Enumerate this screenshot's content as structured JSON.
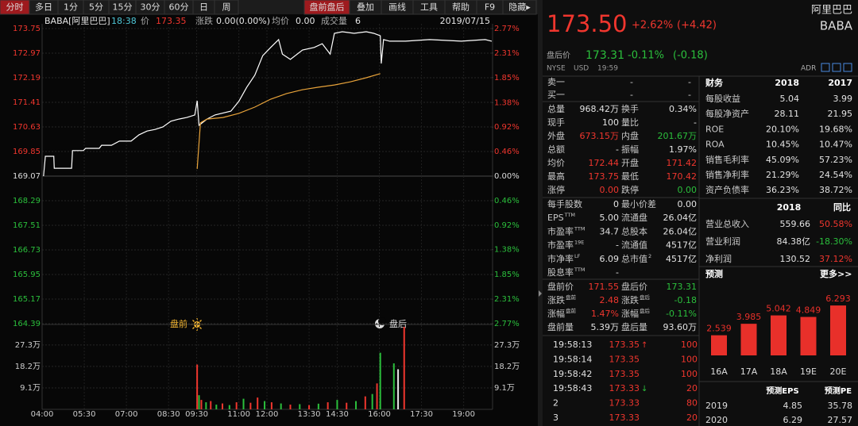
{
  "toolbar": {
    "left": [
      "分时",
      "多日",
      "1分",
      "5分",
      "15分",
      "30分",
      "60分",
      "日",
      "周"
    ],
    "right": [
      "盘前盘后",
      "叠加",
      "画线",
      "工具",
      "帮助",
      "F9",
      "隐藏▸"
    ],
    "active_left": 0,
    "active_right": 0
  },
  "info": {
    "symbol": "BABA[阿里巴巴]",
    "time": "18:38",
    "price_label": "价",
    "price": "173.35",
    "change_label": "涨跌",
    "change": "0.00(0.00%)",
    "avg_label": "均价",
    "avg": "0.00",
    "vol_label": "成交量",
    "vol": "6",
    "date": "2019/07/15"
  },
  "chart_data": [
    {
      "type": "line",
      "xlim": [
        240,
        1200
      ],
      "xticks": [
        {
          "value": 240,
          "label": "04:00"
        },
        {
          "value": 330,
          "label": "05:30"
        },
        {
          "value": 420,
          "label": "07:00"
        },
        {
          "value": 510,
          "label": "08:30"
        },
        {
          "value": 570,
          "label": "09:30"
        },
        {
          "value": 660,
          "label": "11:00"
        },
        {
          "value": 720,
          "label": "12:00"
        },
        {
          "value": 810,
          "label": "13:30"
        },
        {
          "value": 870,
          "label": "14:30"
        },
        {
          "value": 960,
          "label": "16:00"
        },
        {
          "value": 1050,
          "label": "17:30"
        },
        {
          "value": 1140,
          "label": "19:00"
        }
      ],
      "ylim": [
        164.39,
        173.75
      ],
      "yticks": [
        173.75,
        172.97,
        172.19,
        171.41,
        170.63,
        169.85,
        169.07,
        168.29,
        167.51,
        166.73,
        165.95,
        165.17,
        164.39
      ],
      "y2lim": [
        -2.77,
        2.77
      ],
      "y2ticks": [
        {
          "value": 2.77,
          "label": "2.77%"
        },
        {
          "value": 2.31,
          "label": "2.31%"
        },
        {
          "value": 1.85,
          "label": "1.85%"
        },
        {
          "value": 1.38,
          "label": "1.38%"
        },
        {
          "value": 0.92,
          "label": "0.92%"
        },
        {
          "value": 0.46,
          "label": "0.46%"
        },
        {
          "value": 0,
          "label": "0.00%"
        },
        {
          "value": -0.46,
          "label": "0.46%"
        },
        {
          "value": -0.92,
          "label": "0.92%"
        },
        {
          "value": -1.38,
          "label": "1.38%"
        },
        {
          "value": -1.85,
          "label": "1.85%"
        },
        {
          "value": -2.31,
          "label": "2.31%"
        },
        {
          "value": -2.77,
          "label": "2.77%"
        }
      ],
      "grid": true,
      "series": [
        {
          "color": "#ffffff",
          "x": [
            243,
            247,
            265,
            266,
            303,
            305,
            328,
            333,
            362,
            367,
            388,
            405,
            430,
            447,
            464,
            481,
            498,
            515,
            532,
            549,
            566,
            571,
            575,
            592,
            609,
            643,
            660,
            677,
            694,
            711,
            728,
            745,
            753,
            770,
            796,
            821,
            838,
            855,
            864,
            881,
            906,
            932,
            948,
            962,
            964,
            969,
            982,
            1016,
            1067,
            1135,
            1186,
            1200
          ],
          "values": [
            169.07,
            169.7,
            169.7,
            169.32,
            169.32,
            169.88,
            169.88,
            169.95,
            169.95,
            170.05,
            170.05,
            170.18,
            170.18,
            170.38,
            170.5,
            170.55,
            170.63,
            170.81,
            170.88,
            170.93,
            171.01,
            171.46,
            170.68,
            170.88,
            171.01,
            171.13,
            171.44,
            171.89,
            172.27,
            172.89,
            173.15,
            173.4,
            172.94,
            172.77,
            173.07,
            173.15,
            173.27,
            172.94,
            173.6,
            173.65,
            173.6,
            173.65,
            173.6,
            173.52,
            172.64,
            173.4,
            173.35,
            173.35,
            173.4,
            173.35,
            173.4,
            173.35
          ]
        },
        {
          "color": "#e8a33a",
          "x": [
            571,
            578,
            592,
            626,
            660,
            694,
            728,
            762,
            796,
            830,
            864,
            898,
            932,
            962
          ],
          "values": [
            169.3,
            170.76,
            170.88,
            170.93,
            171.06,
            171.26,
            171.51,
            171.69,
            171.81,
            171.89,
            171.96,
            172.06,
            172.19,
            172.32
          ]
        }
      ],
      "annotations": [
        "盘前",
        "盘后"
      ]
    },
    {
      "type": "bar",
      "xlim": [
        240,
        1200
      ],
      "ylim": [
        0,
        360000
      ],
      "yticks": [
        {
          "value": 273000,
          "label": "27.3万"
        },
        {
          "value": 182000,
          "label": "18.2万"
        },
        {
          "value": 91000,
          "label": "9.1万"
        }
      ],
      "x": [
        571,
        575,
        580,
        590,
        600,
        612,
        625,
        640,
        655,
        670,
        685,
        700,
        715,
        730,
        750,
        770,
        790,
        810,
        830,
        850,
        870,
        890,
        910,
        930,
        945,
        955,
        962,
        991,
        1000,
        1013
      ],
      "values": [
        190000,
        60000,
        40000,
        30000,
        35000,
        20000,
        25000,
        18000,
        30000,
        45000,
        28000,
        50000,
        35000,
        30000,
        25000,
        20000,
        22000,
        18000,
        24000,
        30000,
        40000,
        28000,
        35000,
        55000,
        65000,
        110000,
        240000,
        195000,
        170000,
        350000
      ],
      "colors": [
        "red",
        "green",
        "red",
        "green",
        "red",
        "green",
        "red",
        "green",
        "red",
        "green",
        "red",
        "red",
        "green",
        "red",
        "green",
        "red",
        "green",
        "red",
        "green",
        "red",
        "green",
        "red",
        "green",
        "red",
        "green",
        "red",
        "green",
        "green",
        "white",
        "red"
      ]
    },
    {
      "type": "bar",
      "title": "预测",
      "more": "更多>>",
      "categories": [
        "16A",
        "17A",
        "18A",
        "19E",
        "20E"
      ],
      "values": [
        2.539,
        3.985,
        5.042,
        4.849,
        6.293
      ],
      "color": "#e8302a"
    }
  ],
  "quote": {
    "price": "173.50",
    "change_pct": "+2.62%",
    "change": "(+4.42)",
    "name": "阿里巴巴",
    "ticker": "BABA",
    "after_label": "盘后价",
    "after_price": "173.31",
    "after_pct": "-0.11%",
    "after_change": "(-0.18)",
    "exchange": "NYSE",
    "currency": "USD",
    "time": "19:59",
    "adr": "ADR"
  },
  "order_book": [
    [
      "卖一",
      "-",
      "-"
    ],
    [
      "买一",
      "-",
      "-"
    ]
  ],
  "stats": [
    [
      [
        "总量",
        "968.42万",
        "换手",
        "0.34%"
      ],
      [
        "现手",
        "100",
        "量比",
        "-"
      ],
      [
        "外盘",
        {
          "text": "673.15万",
          "color": "red"
        },
        "内盘",
        {
          "text": "201.67万",
          "color": "green"
        }
      ],
      [
        "总额",
        "-",
        "振幅",
        "1.97%"
      ],
      [
        "均价",
        {
          "text": "172.44",
          "color": "red"
        },
        "开盘",
        {
          "text": "171.42",
          "color": "red"
        }
      ],
      [
        "最高",
        {
          "text": "173.75",
          "color": "red"
        },
        "最低",
        {
          "text": "170.42",
          "color": "red"
        }
      ],
      [
        "涨停",
        {
          "text": "0.00",
          "color": "red"
        },
        "跌停",
        {
          "text": "0.00",
          "color": "green"
        }
      ]
    ],
    [
      [
        "每手股数",
        "0",
        "最小价差",
        "0.00"
      ],
      [
        {
          "text": "EPS",
          "sup": "TTM"
        },
        "5.00",
        "流通盘",
        "26.04亿"
      ],
      [
        {
          "text": "市盈率",
          "sup": "TTM"
        },
        "34.7",
        "总股本",
        "26.04亿"
      ],
      [
        {
          "text": "市盈率",
          "sup": "19E"
        },
        "-",
        "流通值",
        "4517亿"
      ],
      [
        {
          "text": "市净率",
          "sup": "LF"
        },
        "6.09",
        {
          "text": "总市值",
          "sup": "2"
        },
        "4517亿"
      ],
      [
        {
          "text": "股息率",
          "sup": "TTM"
        },
        "-"
      ]
    ],
    [
      [
        "盘前价",
        {
          "text": "171.55",
          "color": "red"
        },
        "盘后价",
        {
          "text": "173.31",
          "color": "green"
        }
      ],
      [
        {
          "text": "涨跌",
          "sup": "盘前"
        },
        {
          "text": "2.48",
          "color": "red"
        },
        {
          "text": "涨跌",
          "sup": "盘后"
        },
        {
          "text": "-0.18",
          "color": "green"
        }
      ],
      [
        {
          "text": "涨幅",
          "sup": "盘前"
        },
        {
          "text": "1.47%",
          "color": "red"
        },
        {
          "text": "涨幅",
          "sup": "盘后"
        },
        {
          "text": "-0.11%",
          "color": "green"
        }
      ],
      [
        "盘前量",
        "5.39万",
        "盘后量",
        "93.60万"
      ]
    ]
  ],
  "financials": {
    "header": [
      "财务",
      "2018",
      "2017"
    ],
    "rows": [
      [
        "每股收益",
        "5.04",
        "3.99"
      ],
      [
        "每股净资产",
        "28.11",
        "21.95"
      ],
      [
        "ROE",
        "20.10%",
        "19.68%"
      ],
      [
        "ROA",
        "10.45%",
        "10.47%"
      ],
      [
        "销售毛利率",
        "45.09%",
        "57.23%"
      ],
      [
        "销售净利率",
        "21.29%",
        "24.54%"
      ],
      [
        "资产负债率",
        "36.23%",
        "38.72%"
      ]
    ],
    "header2": [
      "2018",
      "同比"
    ],
    "rows2": [
      [
        "营业总收入",
        "559.66",
        {
          "text": "50.58%",
          "color": "red"
        }
      ],
      [
        "营业利润",
        "84.38亿",
        {
          "text": "-18.30%",
          "color": "green"
        }
      ],
      [
        "净利润",
        "130.52",
        {
          "text": "37.12%",
          "color": "red"
        }
      ]
    ]
  },
  "forecast_table": {
    "header": [
      "预测EPS",
      "预测PE"
    ],
    "rows": [
      [
        "2019",
        "4.85",
        "35.78"
      ],
      [
        "2020",
        "6.29",
        "27.57"
      ]
    ]
  },
  "trades": [
    {
      "time": "19:58:13",
      "price": "173.35",
      "arrow": {
        "text": "↑",
        "color": "red"
      },
      "volume": "100"
    },
    {
      "time": "19:58:14",
      "price": "173.35",
      "volume": "100"
    },
    {
      "time": "19:58:42",
      "price": "173.35",
      "volume": "100"
    },
    {
      "time": "19:58:43",
      "price": "173.33",
      "arrow": {
        "text": "↓",
        "color": "green"
      },
      "volume": "20"
    },
    {
      "time": "2",
      "price": "173.33",
      "volume": "80"
    },
    {
      "time": "3",
      "price": "173.33",
      "volume": "20"
    }
  ]
}
